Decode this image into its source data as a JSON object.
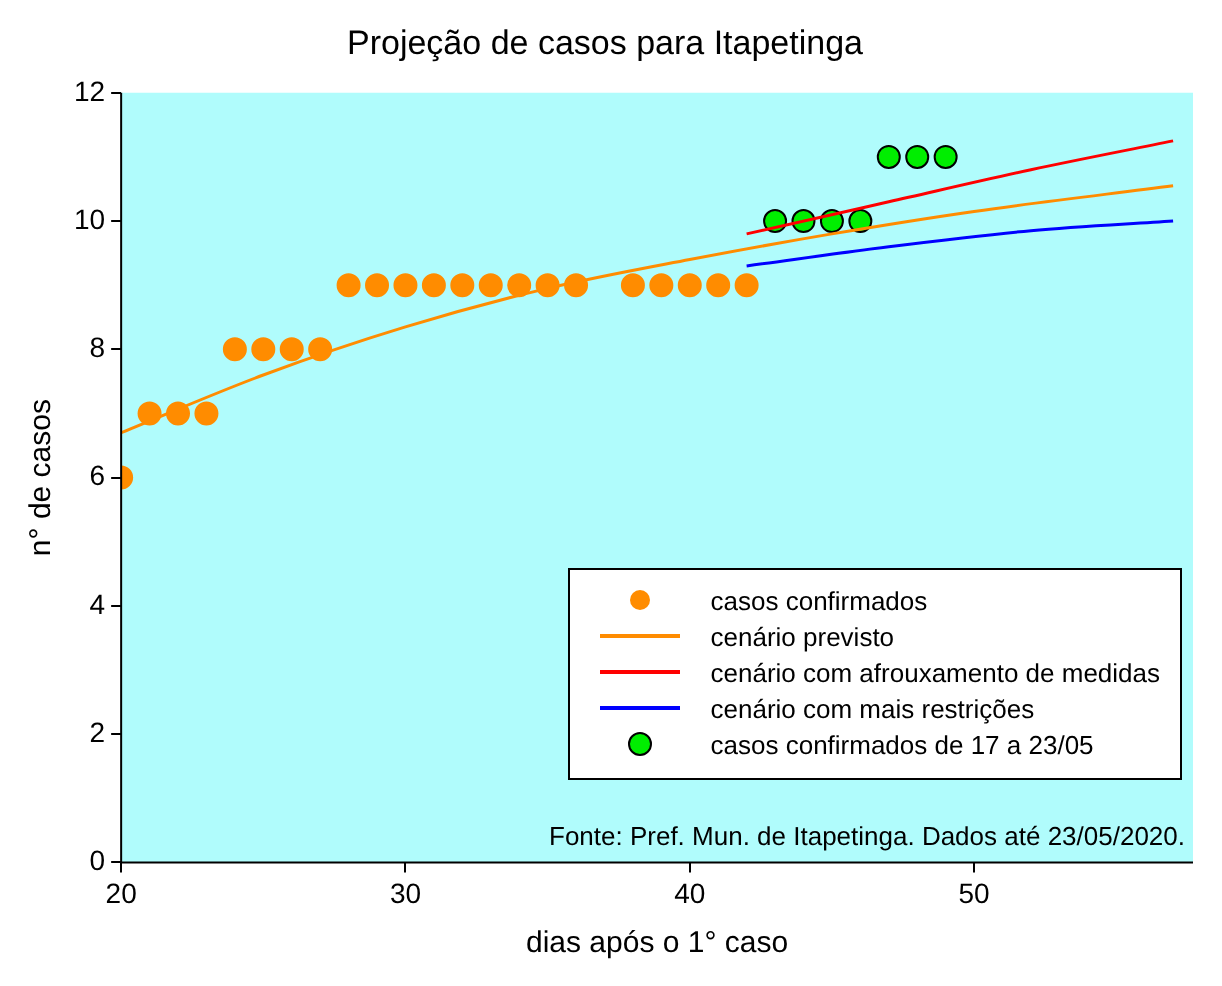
{
  "chart_data": {
    "type": "scatter",
    "title": "Projeção de casos para Itapetinga",
    "xlabel": "dias após o 1° caso",
    "ylabel": "n° de casos",
    "xlim": [
      20,
      57.7
    ],
    "xticks": [
      20,
      30,
      40,
      50
    ],
    "ylim": [
      0,
      12
    ],
    "yticks": [
      0,
      2,
      4,
      6,
      8,
      10,
      12
    ],
    "grid": false,
    "legend": "bottom right",
    "annotations": [
      "Fonte: Pref. Mun. de Itapetinga. Dados até 23/05/2020."
    ],
    "series": [
      {
        "name": "casos confirmados",
        "marker": "circle",
        "color": "#ff8c00",
        "x": [
          20,
          21,
          22,
          23,
          24,
          25,
          26,
          27,
          28,
          29,
          30,
          31,
          32,
          33,
          34,
          35,
          36,
          38,
          39,
          40,
          41,
          42
        ],
        "values": [
          6,
          7,
          7,
          7,
          8,
          8,
          8,
          8,
          9,
          9,
          9,
          9,
          9,
          9,
          9,
          9,
          9,
          9,
          9,
          9,
          9,
          9
        ]
      },
      {
        "name": "cenário previsto",
        "type": "line",
        "marker": "none",
        "color": "#ff8c00",
        "x": [
          20,
          25,
          30,
          35,
          40,
          45,
          50,
          57
        ],
        "values": [
          6.7,
          7.6,
          8.35,
          8.95,
          9.4,
          9.8,
          10.15,
          10.55
        ]
      },
      {
        "name": "cenário com afrouxamento de medidas",
        "type": "line",
        "marker": "none",
        "color": "#ff0000",
        "x": [
          42,
          47,
          52,
          57
        ],
        "values": [
          9.8,
          10.3,
          10.8,
          11.25
        ]
      },
      {
        "name": "cenário com mais restrições",
        "type": "line",
        "marker": "none",
        "color": "#0000ff",
        "x": [
          42,
          47,
          52,
          57
        ],
        "values": [
          9.3,
          9.6,
          9.85,
          10.0
        ]
      },
      {
        "name": "casos confirmados de 17 a 23/05",
        "marker": "circle",
        "color": "#00ee00",
        "x": [
          43,
          44,
          45,
          46,
          47,
          48,
          49
        ],
        "values": [
          10,
          10,
          10,
          10,
          11,
          11,
          11
        ]
      }
    ]
  }
}
